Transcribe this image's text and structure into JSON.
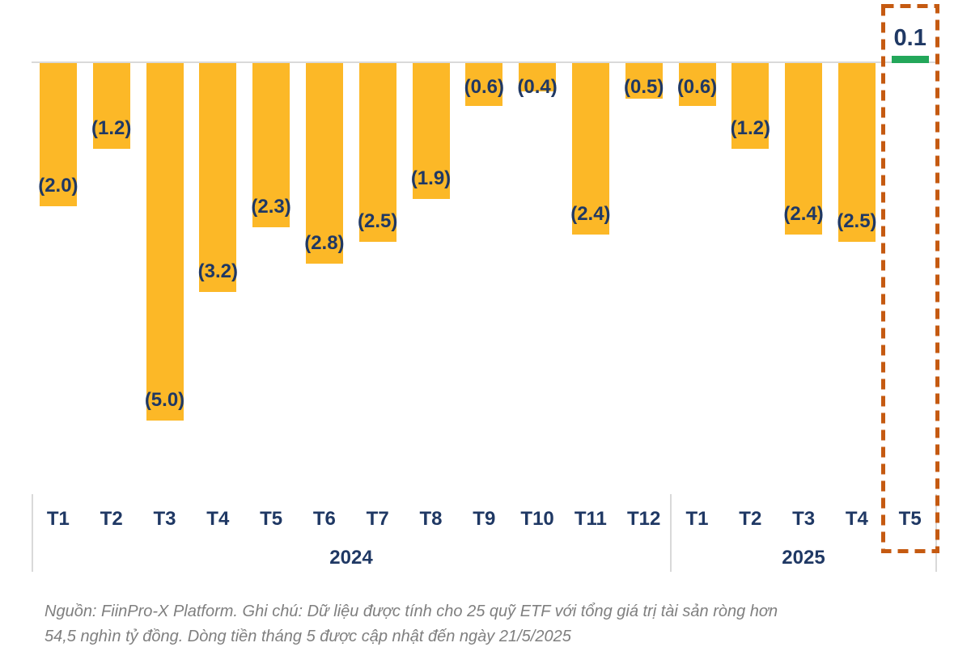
{
  "chart_data": {
    "type": "bar",
    "title": "",
    "categories": [
      "T1",
      "T2",
      "T3",
      "T4",
      "T5",
      "T6",
      "T7",
      "T8",
      "T9",
      "T10",
      "T11",
      "T12",
      "T1",
      "T2",
      "T3",
      "T4",
      "T5"
    ],
    "values": [
      -2.0,
      -1.2,
      -5.0,
      -3.2,
      -2.3,
      -2.8,
      -2.5,
      -1.9,
      -0.6,
      -0.4,
      -2.4,
      -0.5,
      -0.6,
      -1.2,
      -2.4,
      -2.5,
      0.1
    ],
    "data_labels": [
      "(2.0)",
      "(1.2)",
      "(5.0)",
      "(3.2)",
      "(2.3)",
      "(2.8)",
      "(2.5)",
      "(1.9)",
      "(0.6)",
      "(0.4)",
      "(2.4)",
      "(0.5)",
      "(0.6)",
      "(1.2)",
      "(2.4)",
      "(2.5)",
      "0.1"
    ],
    "year_groups": [
      {
        "label": "2024",
        "start": 0,
        "count": 12
      },
      {
        "label": "2025",
        "start": 12,
        "count": 5
      }
    ],
    "ylim": [
      -5.2,
      0.5
    ],
    "grid": false,
    "legend": "none",
    "highlight": {
      "category_index": 16,
      "year": "2025",
      "note": "dashed rectangle around T5 2025 column with positive green bar"
    },
    "colors": {
      "negative_bar": "#FCB827",
      "positive_bar": "#23A75A",
      "data_label": "#1F3864",
      "axis_label": "#1F3864",
      "baseline": "#D9D9D9",
      "highlight_border": "#C55A11",
      "footer_text": "#7F7F7F"
    }
  },
  "footer": {
    "lines": [
      "Nguồn: FiinPro-X Platform. Ghi chú: Dữ liệu được tính cho 25 quỹ ETF với tổng giá trị tài sản ròng hơn",
      "54,5 nghìn tỷ đồng. Dòng tiền tháng 5 được cập nhật đến ngày 21/5/2025"
    ]
  }
}
